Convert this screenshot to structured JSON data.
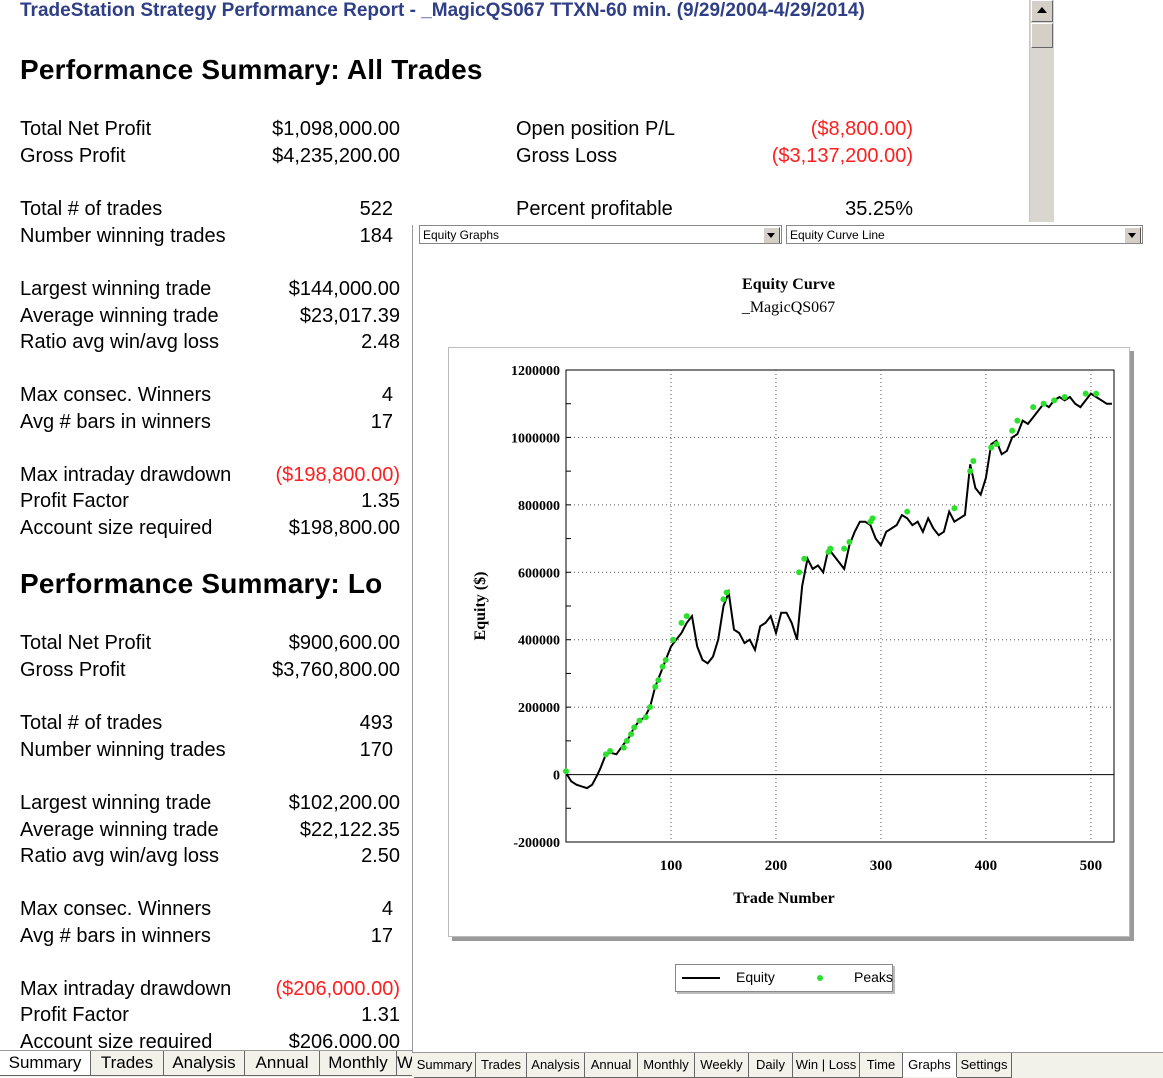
{
  "window": {
    "title": "TradeStation  Strategy Performance Report - _MagicQS067 TTXN-60 min. (9/29/2004-4/29/2014)"
  },
  "all_trades": {
    "heading": "Performance Summary:  All Trades",
    "total_net_profit": {
      "label": "Total Net Profit",
      "value": "$1,098,000.00"
    },
    "gross_profit": {
      "label": "Gross Profit",
      "value": "$4,235,200.00"
    },
    "open_position_pl": {
      "label": "Open position P/L",
      "value": "($8,800.00)"
    },
    "gross_loss": {
      "label": "Gross Loss",
      "value": "($3,137,200.00)"
    },
    "total_trades": {
      "label": "Total # of trades",
      "value": "522"
    },
    "percent_profitable": {
      "label": "Percent profitable",
      "value": "35.25%"
    },
    "winning_trades": {
      "label": "Number winning trades",
      "value": "184"
    },
    "largest_win": {
      "label": "Largest winning trade",
      "value": "$144,000.00"
    },
    "avg_win": {
      "label": "Average winning trade",
      "value": "$23,017.39"
    },
    "ratio": {
      "label": "Ratio avg win/avg loss",
      "value": "2.48"
    },
    "max_consec": {
      "label": "Max consec. Winners",
      "value": "4"
    },
    "avg_bars": {
      "label": "Avg # bars in winners",
      "value": "17"
    },
    "max_dd": {
      "label": "Max intraday drawdown",
      "value": "($198,800.00)"
    },
    "profit_factor": {
      "label": "Profit Factor",
      "value": "1.35"
    },
    "account_size": {
      "label": "Account size required",
      "value": "$198,800.00"
    }
  },
  "long_trades": {
    "heading": "Performance Summary:  Lo",
    "total_net_profit": {
      "label": "Total Net Profit",
      "value": "$900,600.00"
    },
    "gross_profit": {
      "label": "Gross Profit",
      "value": "$3,760,800.00"
    },
    "total_trades": {
      "label": "Total # of trades",
      "value": "493"
    },
    "winning_trades": {
      "label": "Number winning trades",
      "value": "170"
    },
    "largest_win": {
      "label": "Largest winning trade",
      "value": "$102,200.00"
    },
    "avg_win": {
      "label": "Average winning trade",
      "value": "$22,122.35"
    },
    "ratio": {
      "label": "Ratio avg win/avg loss",
      "value": "2.50"
    },
    "max_consec": {
      "label": "Max consec. Winners",
      "value": "4"
    },
    "avg_bars": {
      "label": "Avg # bars in winners",
      "value": "17"
    },
    "max_dd": {
      "label": "Max intraday drawdown",
      "value": "($206,000.00)"
    },
    "profit_factor": {
      "label": "Profit Factor",
      "value": "1.31"
    },
    "account_size": {
      "label": "Account size required",
      "value": "$206,000.00"
    }
  },
  "left_tabs": [
    "Summary",
    "Trades",
    "Analysis",
    "Annual",
    "Monthly",
    "W"
  ],
  "right_tabs": [
    "Summary",
    "Trades",
    "Analysis",
    "Annual",
    "Monthly",
    "Weekly",
    "Daily",
    "Win | Loss",
    "Time",
    "Graphs",
    "Settings"
  ],
  "selected_right_tab": "Graphs",
  "graph_type_select": "Equity Graphs",
  "graph_style_select": "Equity Curve Line",
  "negative_color": "#ff1e1e",
  "chart_data": {
    "type": "line",
    "title": "Equity Curve",
    "subtitle": "_MagicQS067",
    "xlabel": "Trade Number",
    "ylabel": "Equity ($)",
    "xlim": [
      0,
      522
    ],
    "ylim": [
      -200000,
      1200000
    ],
    "xticks": [
      100,
      200,
      300,
      400,
      500
    ],
    "yticks": [
      -200000,
      0,
      200000,
      400000,
      600000,
      800000,
      1000000,
      1200000
    ],
    "grid": true,
    "legend_position": "bottom",
    "series": [
      {
        "name": "Equity",
        "color": "#000000",
        "x": [
          0,
          5,
          10,
          15,
          20,
          25,
          30,
          33,
          38,
          42,
          48,
          55,
          60,
          65,
          70,
          75,
          80,
          85,
          90,
          95,
          100,
          105,
          110,
          115,
          120,
          125,
          130,
          135,
          140,
          145,
          150,
          155,
          160,
          165,
          170,
          175,
          180,
          185,
          190,
          195,
          200,
          205,
          210,
          215,
          220,
          225,
          230,
          235,
          240,
          245,
          250,
          255,
          260,
          265,
          270,
          275,
          280,
          285,
          290,
          295,
          300,
          305,
          310,
          315,
          320,
          325,
          330,
          335,
          340,
          345,
          350,
          355,
          360,
          365,
          370,
          375,
          380,
          385,
          390,
          395,
          400,
          405,
          410,
          415,
          420,
          425,
          430,
          435,
          440,
          445,
          450,
          455,
          460,
          465,
          470,
          475,
          480,
          485,
          490,
          495,
          500,
          505,
          510,
          515,
          520
        ],
        "y": [
          5000,
          -20000,
          -30000,
          -35000,
          -40000,
          -30000,
          0,
          20000,
          60000,
          65000,
          60000,
          90000,
          110000,
          140000,
          160000,
          170000,
          200000,
          260000,
          300000,
          340000,
          380000,
          400000,
          420000,
          450000,
          470000,
          380000,
          340000,
          330000,
          350000,
          400000,
          500000,
          540000,
          430000,
          420000,
          390000,
          400000,
          370000,
          440000,
          450000,
          470000,
          420000,
          480000,
          480000,
          450000,
          400000,
          560000,
          640000,
          610000,
          620000,
          600000,
          670000,
          650000,
          630000,
          610000,
          680000,
          720000,
          750000,
          750000,
          740000,
          700000,
          680000,
          720000,
          730000,
          740000,
          770000,
          760000,
          740000,
          750000,
          720000,
          760000,
          730000,
          710000,
          720000,
          780000,
          750000,
          760000,
          770000,
          920000,
          850000,
          830000,
          880000,
          980000,
          990000,
          950000,
          960000,
          1000000,
          1010000,
          1050000,
          1040000,
          1060000,
          1080000,
          1100000,
          1090000,
          1110000,
          1120000,
          1110000,
          1120000,
          1100000,
          1090000,
          1110000,
          1130000,
          1120000,
          1110000,
          1100000,
          1100000
        ]
      },
      {
        "name": "Peaks",
        "color": "#2ee02e",
        "x": [
          0,
          38,
          42,
          55,
          58,
          62,
          65,
          70,
          76,
          80,
          85,
          88,
          92,
          95,
          102,
          110,
          115,
          150,
          153,
          222,
          227,
          250,
          252,
          265,
          270,
          290,
          292,
          325,
          370,
          385,
          388,
          405,
          410,
          425,
          430,
          445,
          455,
          465,
          475,
          495,
          505
        ],
        "y": [
          10000,
          60000,
          70000,
          80000,
          100000,
          120000,
          140000,
          160000,
          170000,
          200000,
          260000,
          280000,
          320000,
          340000,
          400000,
          450000,
          470000,
          520000,
          540000,
          600000,
          640000,
          660000,
          670000,
          670000,
          690000,
          750000,
          760000,
          780000,
          790000,
          900000,
          930000,
          970000,
          980000,
          1020000,
          1050000,
          1090000,
          1100000,
          1110000,
          1120000,
          1130000,
          1130000
        ]
      }
    ]
  }
}
